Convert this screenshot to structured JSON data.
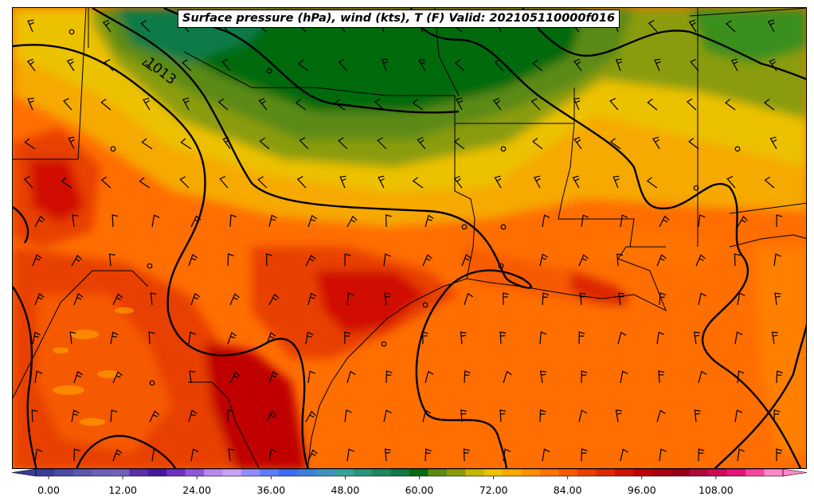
{
  "map": {
    "title": "Surface pressure (hPa), wind (kts), T (F) Valid: 202105110000f016",
    "isobar_label": "1013",
    "colorbar": {
      "colors": [
        "#3a3c99",
        "#4b4aa6",
        "#5a58ad",
        "#6a62b5",
        "#7360ba",
        "#5a2fa7",
        "#4a16a0",
        "#6b31c2",
        "#8f55d8",
        "#b988ec",
        "#c9a0f4",
        "#8e8cff",
        "#5f7cff",
        "#3c6cf5",
        "#3b80d8",
        "#3e93c1",
        "#35a39b",
        "#2b9478",
        "#1f865f",
        "#117a46",
        "#066b10",
        "#5c8a14",
        "#8a9c0c",
        "#c3b600",
        "#ecc100",
        "#f6a900",
        "#ff8f00",
        "#ff7300",
        "#f65a00",
        "#e84000",
        "#dc2800",
        "#d01000",
        "#c00000",
        "#a80010",
        "#950018",
        "#b00838",
        "#cc0a55",
        "#e6137a",
        "#f3489c",
        "#ff88c8"
      ],
      "tick_labels": [
        "0.00",
        "12.00",
        "24.00",
        "36.00",
        "48.00",
        "60.00",
        "72.00",
        "84.00",
        "96.00",
        "108.00"
      ]
    }
  }
}
